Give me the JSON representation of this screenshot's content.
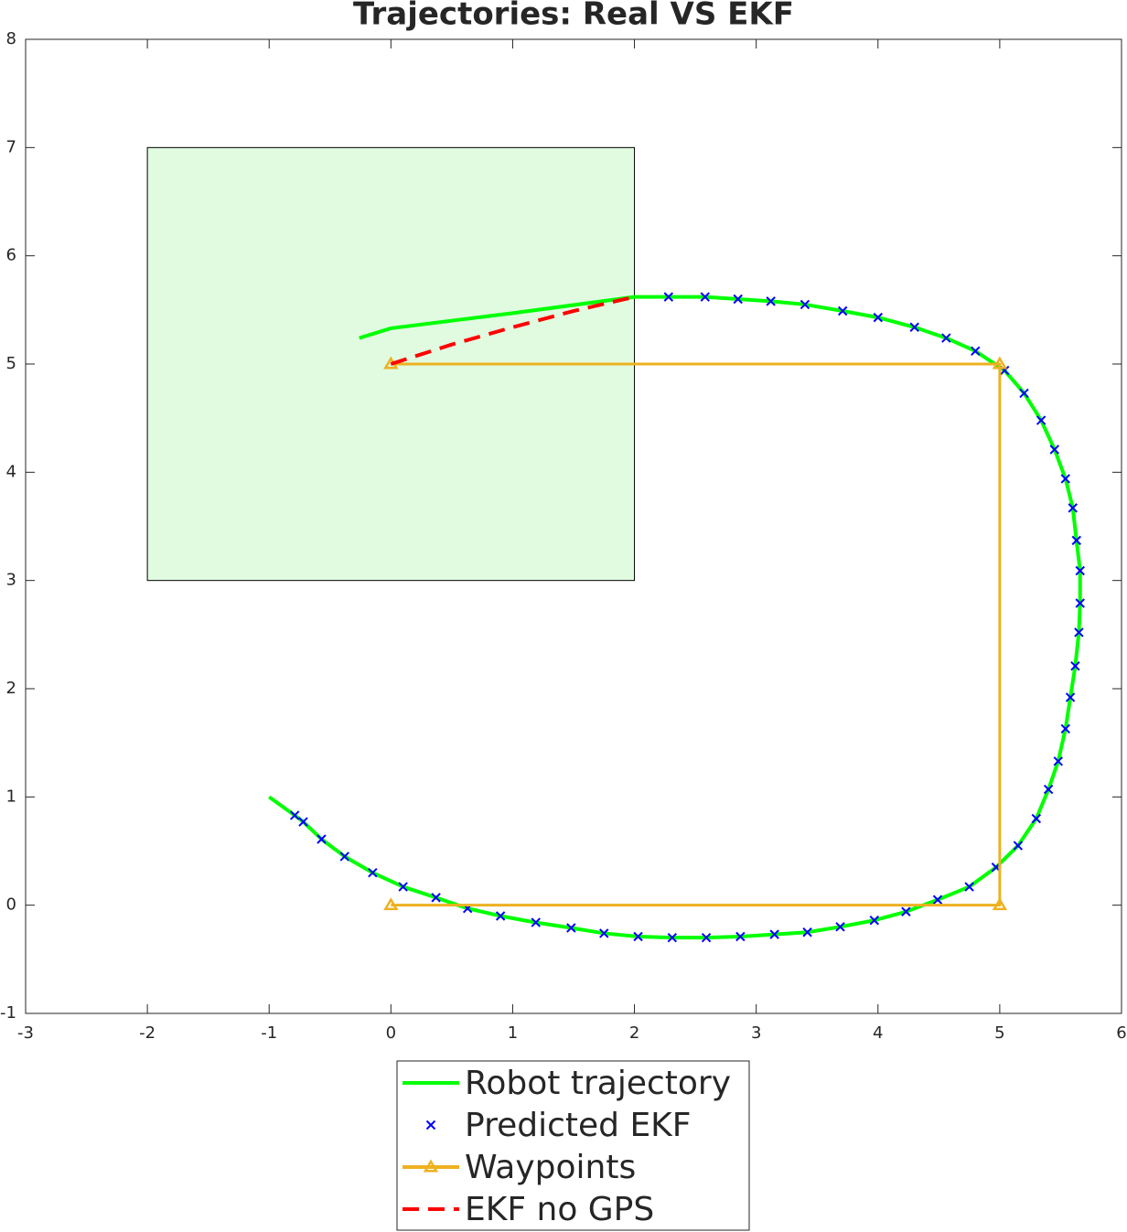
{
  "chart_data": {
    "type": "line",
    "title": "Trajectories: Real VS EKF",
    "xlim": [
      -3,
      6
    ],
    "ylim": [
      -1,
      8
    ],
    "xticks": [
      -3,
      -2,
      -1,
      0,
      1,
      2,
      3,
      4,
      5,
      6
    ],
    "yticks": [
      -1,
      0,
      1,
      2,
      3,
      4,
      5,
      6,
      7,
      8
    ],
    "grid": false,
    "legend": "bottom-outside",
    "region": {
      "x": [
        -2,
        2
      ],
      "y": [
        3,
        7
      ],
      "color": "#e0fbe0"
    },
    "series": [
      {
        "name": "Robot trajectory",
        "color": "#00ff00",
        "line": "solid",
        "marker": "none",
        "x": [
          -1,
          -0.79,
          -0.72,
          -0.57,
          -0.38,
          -0.15,
          0.1,
          0.37,
          0.63,
          0.9,
          1.19,
          1.48,
          1.75,
          2.03,
          2.31,
          2.59,
          2.87,
          3.15,
          3.42,
          3.69,
          3.97,
          4.23,
          4.49,
          4.75,
          4.97,
          5.15,
          5.3,
          5.4,
          5.48,
          5.54,
          5.58,
          5.62,
          5.65,
          5.66,
          5.66,
          5.63,
          5.6,
          5.54,
          5.45,
          5.34,
          5.2,
          5.04,
          4.8,
          4.56,
          4.3,
          4.0,
          3.71,
          3.4,
          3.12,
          2.85,
          2.58,
          2.28,
          2,
          1,
          0,
          -0.26
        ],
        "values": [
          1,
          0.83,
          0.77,
          0.61,
          0.45,
          0.3,
          0.17,
          0.07,
          -0.03,
          -0.1,
          -0.16,
          -0.21,
          -0.26,
          -0.29,
          -0.3,
          -0.3,
          -0.29,
          -0.27,
          -0.25,
          -0.2,
          -0.14,
          -0.06,
          0.05,
          0.17,
          0.35,
          0.55,
          0.8,
          1.07,
          1.33,
          1.63,
          1.92,
          2.21,
          2.52,
          2.79,
          3.09,
          3.37,
          3.67,
          3.94,
          4.21,
          4.48,
          4.73,
          4.94,
          5.12,
          5.24,
          5.34,
          5.43,
          5.49,
          5.55,
          5.58,
          5.6,
          5.62,
          5.62,
          5.62,
          5.47,
          5.33,
          5.24
        ]
      },
      {
        "name": "Predicted EKF",
        "color": "#0000ff",
        "line": "none",
        "marker": "x",
        "x": [
          -0.79,
          -0.72,
          -0.57,
          -0.38,
          -0.15,
          0.1,
          0.37,
          0.63,
          0.9,
          1.19,
          1.48,
          1.75,
          2.03,
          2.31,
          2.59,
          2.87,
          3.15,
          3.42,
          3.69,
          3.97,
          4.23,
          4.49,
          4.75,
          4.97,
          5.15,
          5.3,
          5.4,
          5.48,
          5.54,
          5.58,
          5.62,
          5.65,
          5.66,
          5.66,
          5.63,
          5.6,
          5.54,
          5.45,
          5.34,
          5.2,
          5.04,
          4.8,
          4.56,
          4.3,
          4.0,
          3.71,
          3.4,
          3.12,
          2.85,
          2.58,
          2.28
        ],
        "values": [
          0.83,
          0.77,
          0.61,
          0.45,
          0.3,
          0.17,
          0.07,
          -0.03,
          -0.1,
          -0.16,
          -0.21,
          -0.26,
          -0.29,
          -0.3,
          -0.3,
          -0.29,
          -0.27,
          -0.25,
          -0.2,
          -0.14,
          -0.06,
          0.05,
          0.17,
          0.35,
          0.55,
          0.8,
          1.07,
          1.33,
          1.63,
          1.92,
          2.21,
          2.52,
          2.79,
          3.09,
          3.37,
          3.67,
          3.94,
          4.21,
          4.48,
          4.73,
          4.94,
          5.12,
          5.24,
          5.34,
          5.43,
          5.49,
          5.55,
          5.58,
          5.6,
          5.62,
          5.62
        ]
      },
      {
        "name": "Waypoints",
        "color": "#edb120",
        "line": "solid",
        "marker": "triangle",
        "x": [
          0,
          5,
          5,
          0
        ],
        "values": [
          5,
          5,
          0,
          0
        ]
      },
      {
        "name": "EKF no GPS",
        "color": "#ff0000",
        "line": "dashed",
        "marker": "none",
        "x": [
          0,
          0.5,
          1,
          1.5,
          2
        ],
        "values": [
          5.0,
          5.18,
          5.34,
          5.49,
          5.62
        ]
      }
    ]
  }
}
